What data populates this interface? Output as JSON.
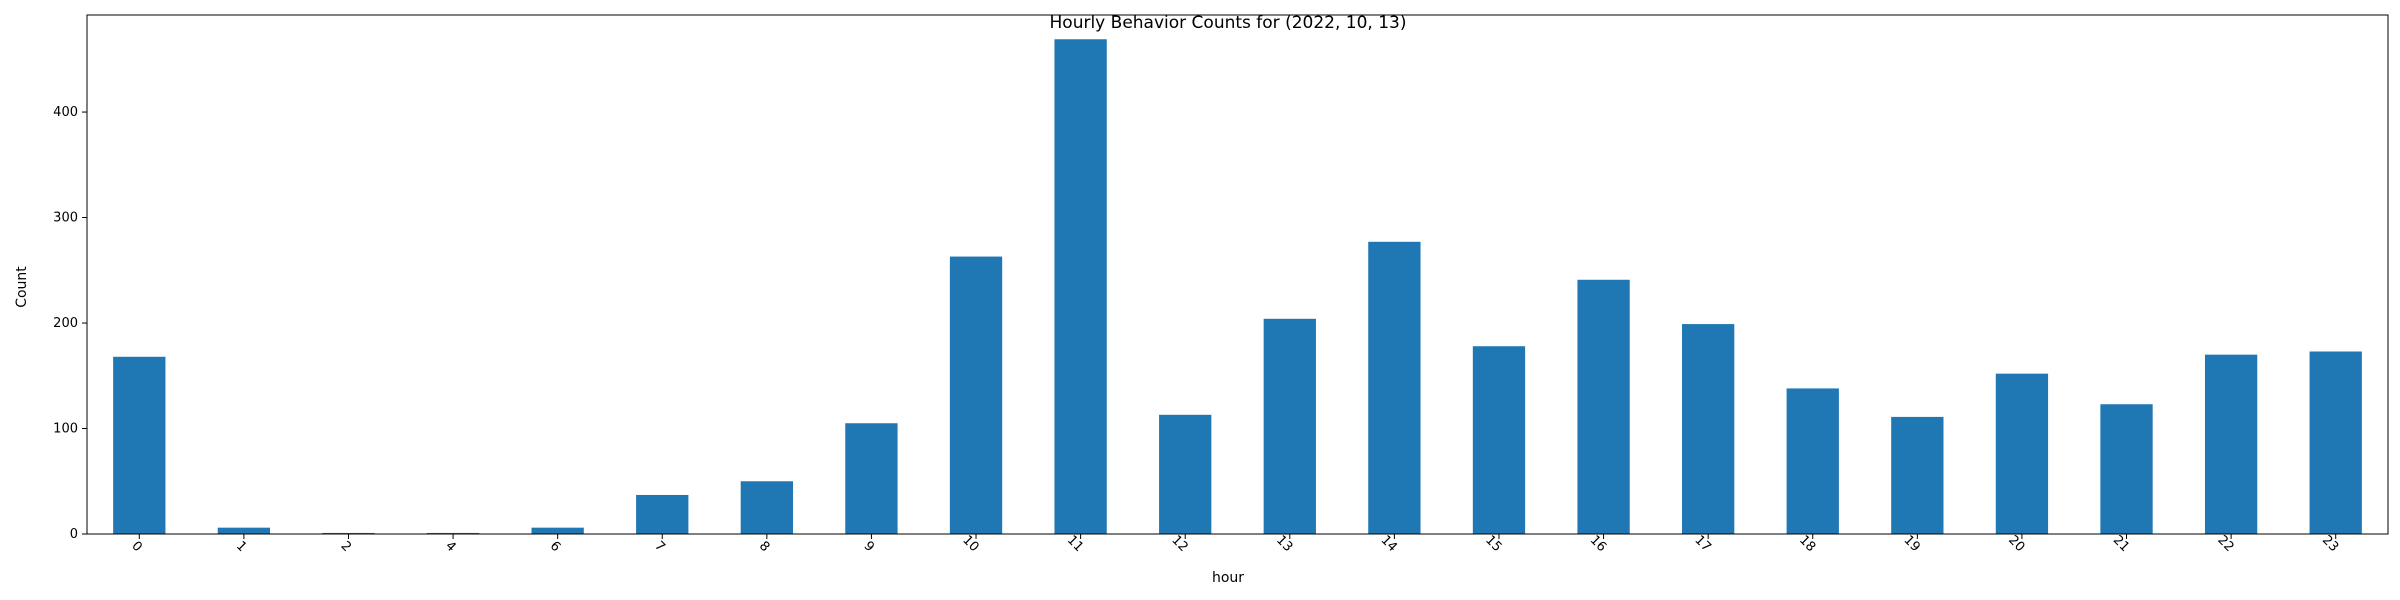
{
  "chart_data": {
    "type": "bar",
    "title": "Hourly Behavior Counts for (2022, 10, 13)",
    "xlabel": "hour",
    "ylabel": "Count",
    "categories": [
      "0",
      "1",
      "2",
      "4",
      "6",
      "7",
      "8",
      "9",
      "10",
      "11",
      "12",
      "13",
      "14",
      "15",
      "16",
      "17",
      "18",
      "19",
      "20",
      "21",
      "22",
      "23"
    ],
    "values": [
      168,
      6,
      1,
      1,
      6,
      37,
      50,
      105,
      263,
      469,
      113,
      204,
      277,
      178,
      241,
      199,
      138,
      111,
      152,
      123,
      170,
      173
    ],
    "ylim": [
      0,
      492
    ],
    "yticks": [
      0,
      100,
      200,
      300,
      400
    ],
    "grid": false,
    "legend": "none",
    "bar_color": "#1f77b4",
    "tick_label_rotation": 45
  }
}
